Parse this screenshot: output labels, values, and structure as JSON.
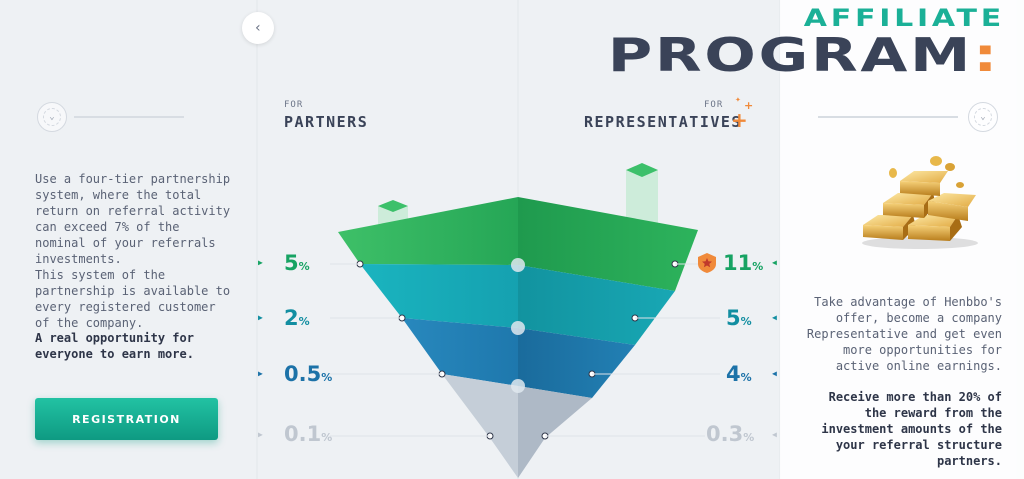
{
  "header": {
    "title_line1": "AFFILIATE",
    "title_line2": "PROGRAM",
    "title_colon": ":"
  },
  "nav": {
    "back_icon": "‹"
  },
  "partners": {
    "for_label": "FOR",
    "title": "PARTNERS",
    "percents": [
      {
        "value": "5",
        "unit": "%"
      },
      {
        "value": "2",
        "unit": "%"
      },
      {
        "value": "0.5",
        "unit": "%"
      },
      {
        "value": "0.1",
        "unit": "%"
      }
    ]
  },
  "representatives": {
    "for_label": "FOR",
    "title": "REPRESENTATIVES",
    "percents": [
      {
        "value": "11",
        "unit": "%"
      },
      {
        "value": "5",
        "unit": "%"
      },
      {
        "value": "4",
        "unit": "%"
      },
      {
        "value": "0.3",
        "unit": "%"
      }
    ]
  },
  "left": {
    "para1": "Use a four-tier partnership system, where the total return on referral activity can exceed 7% of the nominal of your referrals investments.",
    "para2": "This system of the partnership is available to every registered customer of the company.",
    "para3": "A real opportunity for everyone to earn more.",
    "register_label": "REGISTRATION"
  },
  "right": {
    "para1": "Take advantage of Henbbo's offer, become a company Representative and get even more opportunities for active online earnings.",
    "para2": "Receive more than 20% of the reward from the investment amounts of the your referral structure partners."
  },
  "colors": {
    "accent": "#1bb097",
    "dark": "#3a4358",
    "orange": "#f08a3a",
    "tier1": "#22a65a",
    "tier2": "#17a4b5",
    "tier3": "#1c78b0",
    "tier4": "#b8c3cf"
  }
}
